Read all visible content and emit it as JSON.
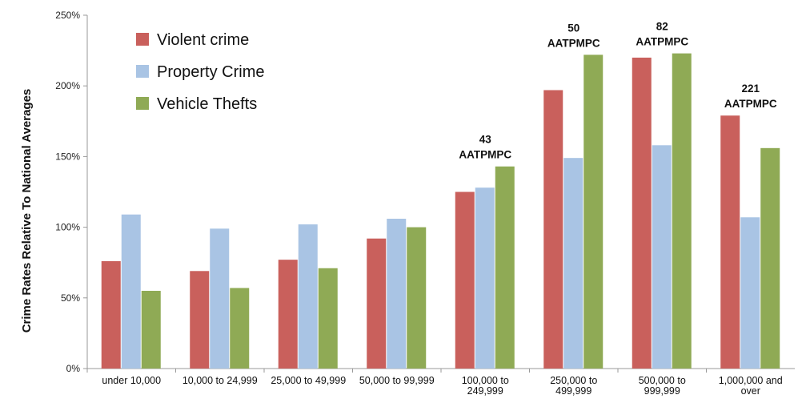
{
  "chart_data": {
    "type": "bar",
    "title": "",
    "xlabel": "",
    "ylabel": "Crime Rates Relative To National Averages",
    "ylim": [
      0,
      250
    ],
    "yticks": [
      0,
      50,
      100,
      150,
      200,
      250
    ],
    "ytick_labels": [
      "0%",
      "50%",
      "100%",
      "150%",
      "200%",
      "250%"
    ],
    "grid": false,
    "legend_position": "top-left",
    "categories": [
      [
        "under 10,000"
      ],
      [
        "10,000 to 24,999"
      ],
      [
        "25,000 to 49,999"
      ],
      [
        "50,000 to 99,999"
      ],
      [
        "100,000 to",
        "249,999"
      ],
      [
        "250,000 to",
        "499,999"
      ],
      [
        "500,000 to",
        "999,999"
      ],
      [
        "1,000,000 and",
        "over"
      ]
    ],
    "series": [
      {
        "name": "Violent crime",
        "color": "#c9605c",
        "values": [
          76,
          69,
          77,
          92,
          125,
          197,
          220,
          179
        ]
      },
      {
        "name": "Property Crime",
        "color": "#a9c4e4",
        "values": [
          109,
          99,
          102,
          106,
          128,
          149,
          158,
          107
        ]
      },
      {
        "name": "Vehicle Thefts",
        "color": "#8faa55",
        "values": [
          55,
          57,
          71,
          100,
          143,
          222,
          223,
          156
        ]
      }
    ],
    "annotations": [
      {
        "category_index": 4,
        "lines": [
          "43",
          "AATPMPC"
        ]
      },
      {
        "category_index": 5,
        "lines": [
          "50",
          "AATPMPC"
        ]
      },
      {
        "category_index": 6,
        "lines": [
          "82",
          "AATPMPC"
        ]
      },
      {
        "category_index": 7,
        "lines": [
          "221",
          "AATPMPC"
        ]
      }
    ]
  }
}
